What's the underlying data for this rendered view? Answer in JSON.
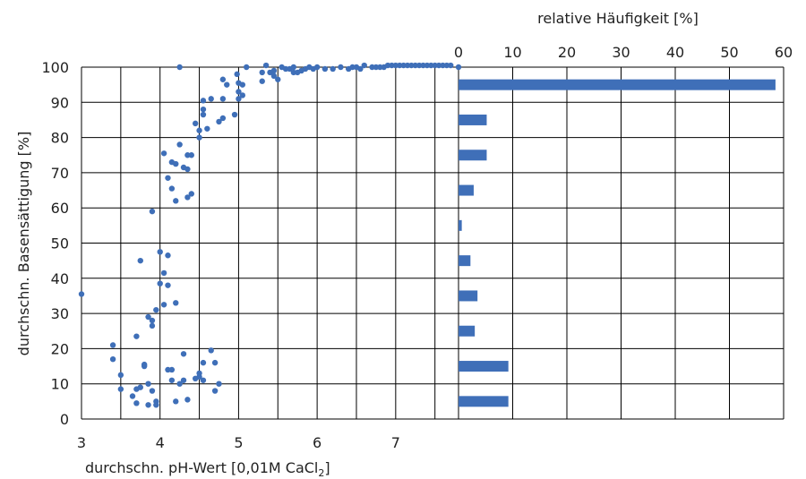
{
  "chart_data": [
    {
      "type": "scatter",
      "xlabel": "durchschn. pH-Wert [0,01M CaCl",
      "xlabel_sub": "2",
      "xlabel_end": "]",
      "ylabel": "durchschn. Basensättigung [%]",
      "xlim": [
        3,
        7.8
      ],
      "ylim": [
        0,
        100
      ],
      "xticks": [
        3,
        4,
        5,
        6,
        7
      ],
      "yticks": [
        0,
        10,
        20,
        30,
        40,
        50,
        60,
        70,
        80,
        90,
        100
      ],
      "grid": true,
      "marker_color": "#3f6fb8",
      "points": [
        [
          3.0,
          35.5
        ],
        [
          3.4,
          21
        ],
        [
          3.4,
          17
        ],
        [
          3.5,
          12.5
        ],
        [
          3.5,
          8.5
        ],
        [
          3.65,
          6.5
        ],
        [
          3.7,
          4.5
        ],
        [
          3.7,
          8.5
        ],
        [
          3.75,
          9
        ],
        [
          3.7,
          23.5
        ],
        [
          3.75,
          45
        ],
        [
          3.8,
          15.5
        ],
        [
          3.8,
          15
        ],
        [
          3.85,
          10
        ],
        [
          3.85,
          29
        ],
        [
          3.85,
          4
        ],
        [
          3.9,
          8
        ],
        [
          3.9,
          28
        ],
        [
          3.9,
          26.5
        ],
        [
          3.95,
          5
        ],
        [
          3.95,
          4
        ],
        [
          3.9,
          59
        ],
        [
          3.95,
          31
        ],
        [
          4.0,
          38.5
        ],
        [
          4.0,
          47.5
        ],
        [
          4.05,
          41.5
        ],
        [
          4.05,
          32.5
        ],
        [
          4.05,
          75.5
        ],
        [
          4.1,
          68.5
        ],
        [
          4.1,
          38
        ],
        [
          4.1,
          46.5
        ],
        [
          4.1,
          14
        ],
        [
          4.15,
          14
        ],
        [
          4.15,
          73
        ],
        [
          4.15,
          65.5
        ],
        [
          4.15,
          11
        ],
        [
          4.2,
          62
        ],
        [
          4.2,
          33
        ],
        [
          4.2,
          5
        ],
        [
          4.25,
          10
        ],
        [
          4.2,
          72.5
        ],
        [
          4.25,
          78
        ],
        [
          4.3,
          71.5
        ],
        [
          4.3,
          11
        ],
        [
          4.3,
          18.5
        ],
        [
          4.35,
          71
        ],
        [
          4.35,
          75
        ],
        [
          4.35,
          63
        ],
        [
          4.4,
          75
        ],
        [
          4.4,
          64
        ],
        [
          4.35,
          5.5
        ],
        [
          4.45,
          84
        ],
        [
          4.45,
          11.5
        ],
        [
          4.5,
          82
        ],
        [
          4.5,
          80
        ],
        [
          4.5,
          12
        ],
        [
          4.55,
          86.5
        ],
        [
          4.55,
          88
        ],
        [
          4.55,
          90.5
        ],
        [
          4.5,
          13
        ],
        [
          4.55,
          16
        ],
        [
          4.55,
          11
        ],
        [
          4.6,
          82.5
        ],
        [
          4.65,
          91
        ],
        [
          4.65,
          19.5
        ],
        [
          4.7,
          16
        ],
        [
          4.7,
          8
        ],
        [
          4.75,
          10
        ],
        [
          4.75,
          84.5
        ],
        [
          4.8,
          91
        ],
        [
          4.8,
          85.5
        ],
        [
          4.8,
          96.5
        ],
        [
          4.85,
          95
        ],
        [
          4.95,
          86.5
        ],
        [
          4.98,
          98
        ],
        [
          5.0,
          95.5
        ],
        [
          5.0,
          93
        ],
        [
          5.0,
          91
        ],
        [
          5.05,
          92
        ],
        [
          5.05,
          95
        ],
        [
          5.1,
          100
        ],
        [
          5.3,
          96
        ],
        [
          5.3,
          98.5
        ],
        [
          5.35,
          100.5
        ],
        [
          5.4,
          98.5
        ],
        [
          5.45,
          99
        ],
        [
          5.45,
          97.5
        ],
        [
          5.5,
          96.5
        ],
        [
          5.55,
          100
        ],
        [
          5.6,
          99.5
        ],
        [
          5.65,
          99.5
        ],
        [
          5.7,
          98.5
        ],
        [
          5.75,
          98.5
        ],
        [
          5.8,
          99
        ],
        [
          5.85,
          99.5
        ],
        [
          5.9,
          100
        ],
        [
          5.95,
          99.5
        ],
        [
          6.0,
          100
        ],
        [
          6.1,
          99.5
        ],
        [
          6.2,
          99.5
        ],
        [
          6.3,
          100
        ],
        [
          6.4,
          99.5
        ],
        [
          6.45,
          100
        ],
        [
          6.5,
          100
        ],
        [
          6.55,
          99.5
        ],
        [
          6.6,
          100.5
        ],
        [
          6.7,
          100
        ],
        [
          6.75,
          100
        ],
        [
          6.8,
          100
        ],
        [
          6.85,
          100
        ],
        [
          6.9,
          100.5
        ],
        [
          6.95,
          100.5
        ],
        [
          7.0,
          100.5
        ],
        [
          7.05,
          100.5
        ],
        [
          7.1,
          100.5
        ],
        [
          7.15,
          100.5
        ],
        [
          7.2,
          100.5
        ],
        [
          7.25,
          100.5
        ],
        [
          7.3,
          100.5
        ],
        [
          7.35,
          100.5
        ],
        [
          7.4,
          100.5
        ],
        [
          7.45,
          100.5
        ],
        [
          7.5,
          100.5
        ],
        [
          7.55,
          100.5
        ],
        [
          7.6,
          100.5
        ],
        [
          7.65,
          100.5
        ],
        [
          7.7,
          100.5
        ],
        [
          4.25,
          100
        ],
        [
          5.7,
          100
        ],
        [
          7.8,
          100
        ]
      ]
    },
    {
      "type": "bar",
      "orientation": "horizontal",
      "xlabel": "relative Häufigkeit [%]",
      "xlim": [
        0,
        60
      ],
      "xticks": [
        0,
        10,
        20,
        30,
        40,
        50,
        60
      ],
      "x_axis_position": "top",
      "grid": true,
      "bar_color": "#3f6fb8",
      "bars": [
        {
          "y": 95,
          "value": 58.5
        },
        {
          "y": 85,
          "value": 5.2
        },
        {
          "y": 75,
          "value": 5.2
        },
        {
          "y": 65,
          "value": 2.8
        },
        {
          "y": 55,
          "value": 0.6
        },
        {
          "y": 45,
          "value": 2.2
        },
        {
          "y": 35,
          "value": 3.5
        },
        {
          "y": 25,
          "value": 3.0
        },
        {
          "y": 15,
          "value": 9.2
        },
        {
          "y": 5,
          "value": 9.2
        }
      ]
    }
  ]
}
